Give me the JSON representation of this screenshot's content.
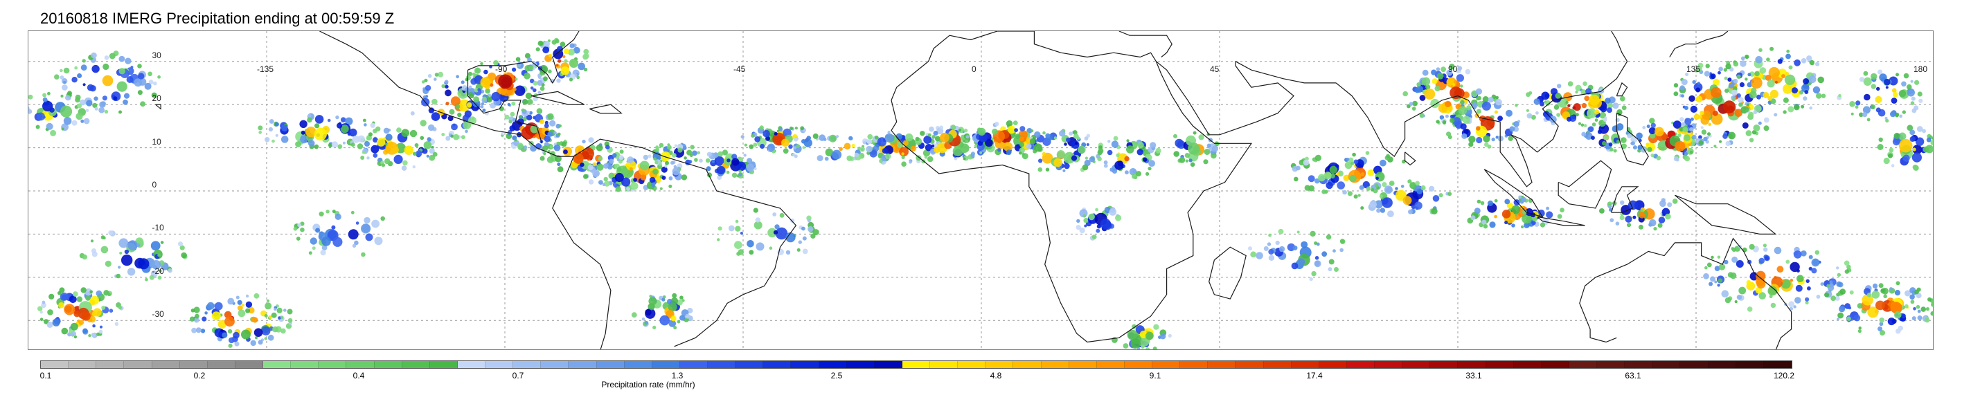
{
  "title": "20160818 IMERG Precipitation ending at 00:59:59 Z",
  "map": {
    "lat_labels": [
      "30",
      "20",
      "10",
      "0",
      "-10",
      "-20",
      "-30"
    ],
    "lon_labels": [
      "-135",
      "-90",
      "-45",
      "0",
      "45",
      "90",
      "135",
      "180"
    ],
    "gridline_color": "#9a9a9a",
    "coastline_color": "#1a1a1a"
  },
  "colorbar": {
    "label": "Precipitation rate (mm/hr)",
    "ticks": [
      "0.1",
      "0.2",
      "0.4",
      "0.7",
      "1.3",
      "2.5",
      "4.8",
      "9.1",
      "17.4",
      "33.1",
      "63.1",
      "120.2"
    ],
    "colors": [
      "#c4c4c4",
      "#bbbbbb",
      "#b2b2b2",
      "#aaaaaa",
      "#a1a1a1",
      "#999999",
      "#909090",
      "#888888",
      "#8ae08a",
      "#7fda7f",
      "#74d474",
      "#69cd69",
      "#5ec65e",
      "#53bf53",
      "#48b748",
      "#c6d8f8",
      "#b4ccf5",
      "#a1c0f2",
      "#8eb4ef",
      "#7aa7ec",
      "#669ae9",
      "#528de6",
      "#3e7fe2",
      "#3b65ee",
      "#2f56ea",
      "#2347e5",
      "#1737e0",
      "#0b28db",
      "#0018d5",
      "#0010c8",
      "#0008b8",
      "#fff200",
      "#ffe600",
      "#ffd900",
      "#ffcb00",
      "#ffbd00",
      "#ffae00",
      "#ff9f00",
      "#ff9000",
      "#ff8100",
      "#f97300",
      "#f36400",
      "#ec5600",
      "#e54800",
      "#df3a00",
      "#d82c00",
      "#d21d00",
      "#cc1010",
      "#c00d0d",
      "#b30a0a",
      "#a60808",
      "#990606",
      "#8c0404",
      "#800303",
      "#730202",
      "#6a1a14",
      "#621612",
      "#5a1310",
      "#52100e",
      "#4a0d0c",
      "#420a0a",
      "#3b0808",
      "#340606"
    ]
  }
}
